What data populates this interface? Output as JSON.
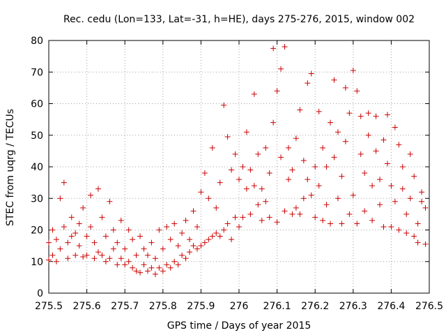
{
  "chart_data": {
    "type": "scatter",
    "title": "Rec. cedu (Lon=133, Lat=-31, h=HE), days 275-276, 2015, window 002",
    "xlabel": "GPS time / Days of year 2015",
    "ylabel": "STEC from uqrg / TECUs",
    "xlim": [
      275.5,
      276.5
    ],
    "ylim": [
      0,
      80
    ],
    "x_ticks": [
      275.5,
      275.6,
      275.7,
      275.8,
      275.9,
      276,
      276.1,
      276.2,
      276.3,
      276.4,
      276.5
    ],
    "x_tick_labels": [
      "275.5",
      "275.6",
      "275.7",
      "275.8",
      "275.9",
      "276",
      "276.1",
      "276.2",
      "276.3",
      "276.4",
      "276.5"
    ],
    "y_ticks": [
      0,
      10,
      20,
      30,
      40,
      50,
      60,
      70,
      80
    ],
    "y_tick_labels": [
      "0",
      "10",
      "20",
      "30",
      "40",
      "50",
      "60",
      "70",
      "80"
    ],
    "grid": true,
    "marker": "plus",
    "color": "#cc0000",
    "series": [
      {
        "points": [
          [
            275.5,
            10.5
          ],
          [
            275.5,
            16
          ],
          [
            275.51,
            12
          ],
          [
            275.51,
            20
          ],
          [
            275.52,
            10
          ],
          [
            275.52,
            17
          ],
          [
            275.53,
            14
          ],
          [
            275.53,
            30
          ],
          [
            275.54,
            35
          ],
          [
            275.54,
            21
          ],
          [
            275.55,
            11
          ],
          [
            275.55,
            16
          ],
          [
            275.56,
            18
          ],
          [
            275.56,
            24
          ],
          [
            275.57,
            12
          ],
          [
            275.57,
            19
          ],
          [
            275.58,
            15
          ],
          [
            275.58,
            22
          ],
          [
            275.59,
            11.5
          ],
          [
            275.59,
            27
          ],
          [
            275.6,
            12
          ],
          [
            275.6,
            18
          ],
          [
            275.61,
            21
          ],
          [
            275.61,
            31
          ],
          [
            275.62,
            11
          ],
          [
            275.62,
            16
          ],
          [
            275.63,
            13
          ],
          [
            275.63,
            33
          ],
          [
            275.64,
            12
          ],
          [
            275.64,
            24
          ],
          [
            275.65,
            10
          ],
          [
            275.65,
            18
          ],
          [
            275.66,
            11
          ],
          [
            275.66,
            29
          ],
          [
            275.67,
            14
          ],
          [
            275.67,
            20
          ],
          [
            275.68,
            9
          ],
          [
            275.68,
            16
          ],
          [
            275.69,
            11
          ],
          [
            275.69,
            23
          ],
          [
            275.7,
            9
          ],
          [
            275.7,
            14
          ],
          [
            275.71,
            10
          ],
          [
            275.71,
            20
          ],
          [
            275.72,
            8
          ],
          [
            275.72,
            17
          ],
          [
            275.73,
            7
          ],
          [
            275.73,
            12
          ],
          [
            275.74,
            6.5
          ],
          [
            275.74,
            18
          ],
          [
            275.75,
            9
          ],
          [
            275.75,
            14
          ],
          [
            275.76,
            7
          ],
          [
            275.76,
            12
          ],
          [
            275.77,
            8
          ],
          [
            275.77,
            16
          ],
          [
            275.78,
            6
          ],
          [
            275.78,
            11
          ],
          [
            275.79,
            8
          ],
          [
            275.79,
            20
          ],
          [
            275.8,
            7
          ],
          [
            275.8,
            14
          ],
          [
            275.81,
            9
          ],
          [
            275.81,
            21
          ],
          [
            275.82,
            8
          ],
          [
            275.82,
            17
          ],
          [
            275.83,
            10
          ],
          [
            275.83,
            22
          ],
          [
            275.84,
            9
          ],
          [
            275.84,
            15
          ],
          [
            275.85,
            12
          ],
          [
            275.85,
            19
          ],
          [
            275.86,
            11
          ],
          [
            275.86,
            23
          ],
          [
            275.87,
            13
          ],
          [
            275.87,
            17
          ],
          [
            275.88,
            15
          ],
          [
            275.88,
            26
          ],
          [
            275.89,
            14
          ],
          [
            275.89,
            21
          ],
          [
            275.9,
            15
          ],
          [
            275.9,
            32
          ],
          [
            275.91,
            16
          ],
          [
            275.91,
            38
          ],
          [
            275.92,
            17
          ],
          [
            275.92,
            30
          ],
          [
            275.93,
            18
          ],
          [
            275.93,
            46
          ],
          [
            275.94,
            19
          ],
          [
            275.94,
            27
          ],
          [
            275.95,
            18
          ],
          [
            275.95,
            35
          ],
          [
            275.96,
            20
          ],
          [
            275.96,
            59.5
          ],
          [
            275.97,
            22
          ],
          [
            275.97,
            49.5
          ],
          [
            275.98,
            17
          ],
          [
            275.98,
            39
          ],
          [
            275.99,
            24
          ],
          [
            275.99,
            44
          ],
          [
            276.0,
            21
          ],
          [
            276.0,
            36
          ],
          [
            276.01,
            24
          ],
          [
            276.01,
            40
          ],
          [
            276.02,
            33
          ],
          [
            276.02,
            51
          ],
          [
            276.03,
            25
          ],
          [
            276.03,
            39
          ],
          [
            276.04,
            34
          ],
          [
            276.04,
            63
          ],
          [
            276.05,
            28
          ],
          [
            276.05,
            44
          ],
          [
            276.06,
            23
          ],
          [
            276.06,
            33
          ],
          [
            276.07,
            29
          ],
          [
            276.07,
            46
          ],
          [
            276.08,
            24
          ],
          [
            276.08,
            38
          ],
          [
            276.09,
            54
          ],
          [
            276.09,
            77.5
          ],
          [
            276.1,
            22.5
          ],
          [
            276.1,
            64
          ],
          [
            276.11,
            43
          ],
          [
            276.11,
            71
          ],
          [
            276.12,
            26
          ],
          [
            276.12,
            78
          ],
          [
            276.13,
            46
          ],
          [
            276.13,
            36
          ],
          [
            276.14,
            25
          ],
          [
            276.14,
            39
          ],
          [
            276.15,
            27
          ],
          [
            276.15,
            49
          ],
          [
            276.16,
            25
          ],
          [
            276.16,
            58
          ],
          [
            276.17,
            30
          ],
          [
            276.17,
            42
          ],
          [
            276.18,
            36
          ],
          [
            276.18,
            66.5
          ],
          [
            276.19,
            31
          ],
          [
            276.19,
            69.5
          ],
          [
            276.2,
            24
          ],
          [
            276.2,
            40
          ],
          [
            276.21,
            57.5
          ],
          [
            276.21,
            34
          ],
          [
            276.22,
            23
          ],
          [
            276.22,
            46
          ],
          [
            276.23,
            28
          ],
          [
            276.23,
            40
          ],
          [
            276.24,
            54
          ],
          [
            276.24,
            22
          ],
          [
            276.25,
            67.5
          ],
          [
            276.25,
            43
          ],
          [
            276.26,
            30
          ],
          [
            276.26,
            51
          ],
          [
            276.27,
            22
          ],
          [
            276.27,
            37
          ],
          [
            276.28,
            48
          ],
          [
            276.28,
            65
          ],
          [
            276.29,
            25
          ],
          [
            276.29,
            57
          ],
          [
            276.3,
            70.5
          ],
          [
            276.3,
            31
          ],
          [
            276.31,
            64
          ],
          [
            276.31,
            22
          ],
          [
            276.32,
            44
          ],
          [
            276.32,
            56
          ],
          [
            276.33,
            26
          ],
          [
            276.33,
            38
          ],
          [
            276.34,
            57
          ],
          [
            276.34,
            50
          ],
          [
            276.35,
            34
          ],
          [
            276.35,
            23
          ],
          [
            276.36,
            45
          ],
          [
            276.36,
            56
          ],
          [
            276.37,
            28
          ],
          [
            276.37,
            36
          ],
          [
            276.38,
            48.5
          ],
          [
            276.38,
            21
          ],
          [
            276.39,
            56.5
          ],
          [
            276.39,
            41
          ],
          [
            276.4,
            21
          ],
          [
            276.4,
            34
          ],
          [
            276.41,
            52.5
          ],
          [
            276.41,
            29
          ],
          [
            276.42,
            47
          ],
          [
            276.42,
            20
          ],
          [
            276.43,
            40
          ],
          [
            276.43,
            33
          ],
          [
            276.44,
            19
          ],
          [
            276.44,
            25
          ],
          [
            276.45,
            44
          ],
          [
            276.45,
            30
          ],
          [
            276.46,
            18
          ],
          [
            276.46,
            37
          ],
          [
            276.47,
            22
          ],
          [
            276.47,
            16
          ],
          [
            276.48,
            29
          ],
          [
            276.48,
            32
          ],
          [
            276.49,
            15.5
          ],
          [
            276.49,
            27
          ]
        ]
      }
    ]
  }
}
